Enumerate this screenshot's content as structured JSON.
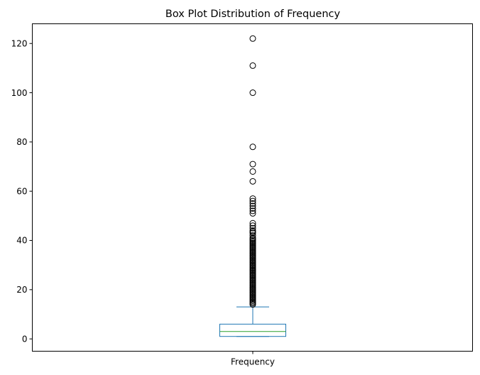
{
  "chart_data": {
    "type": "box",
    "title": "Box Plot Distribution of Frequency",
    "xlabel": "",
    "ylabel": "",
    "categories": [
      "Frequency"
    ],
    "ylim": [
      -5,
      128
    ],
    "yticks": [
      0,
      20,
      40,
      60,
      80,
      100,
      120
    ],
    "grid": false,
    "box": {
      "whisker_low": 1,
      "q1": 1,
      "median": 3,
      "q3": 6,
      "whisker_high": 13
    },
    "outliers": [
      14,
      14.5,
      15,
      15.5,
      16,
      16.5,
      17,
      17.5,
      18,
      18.5,
      19,
      19.5,
      20,
      20.5,
      21,
      21.5,
      22,
      22.5,
      23,
      23.5,
      24,
      24.5,
      25,
      25.5,
      26,
      26.5,
      27,
      27.5,
      28,
      28.5,
      29,
      29.5,
      30,
      30.5,
      31,
      31.5,
      32,
      32.5,
      33,
      33.5,
      34,
      34.5,
      35,
      35.5,
      36,
      36.5,
      37,
      37.5,
      38,
      38.5,
      39,
      39.5,
      40,
      40.5,
      41,
      42,
      43,
      43.5,
      44,
      45,
      46,
      47,
      51,
      52,
      53,
      54,
      55,
      56,
      57,
      64,
      68,
      71,
      78,
      100,
      111,
      122
    ],
    "colors": {
      "box": "#1f77b4",
      "median": "#2ca02c",
      "outlier_edge": "#000000"
    }
  }
}
